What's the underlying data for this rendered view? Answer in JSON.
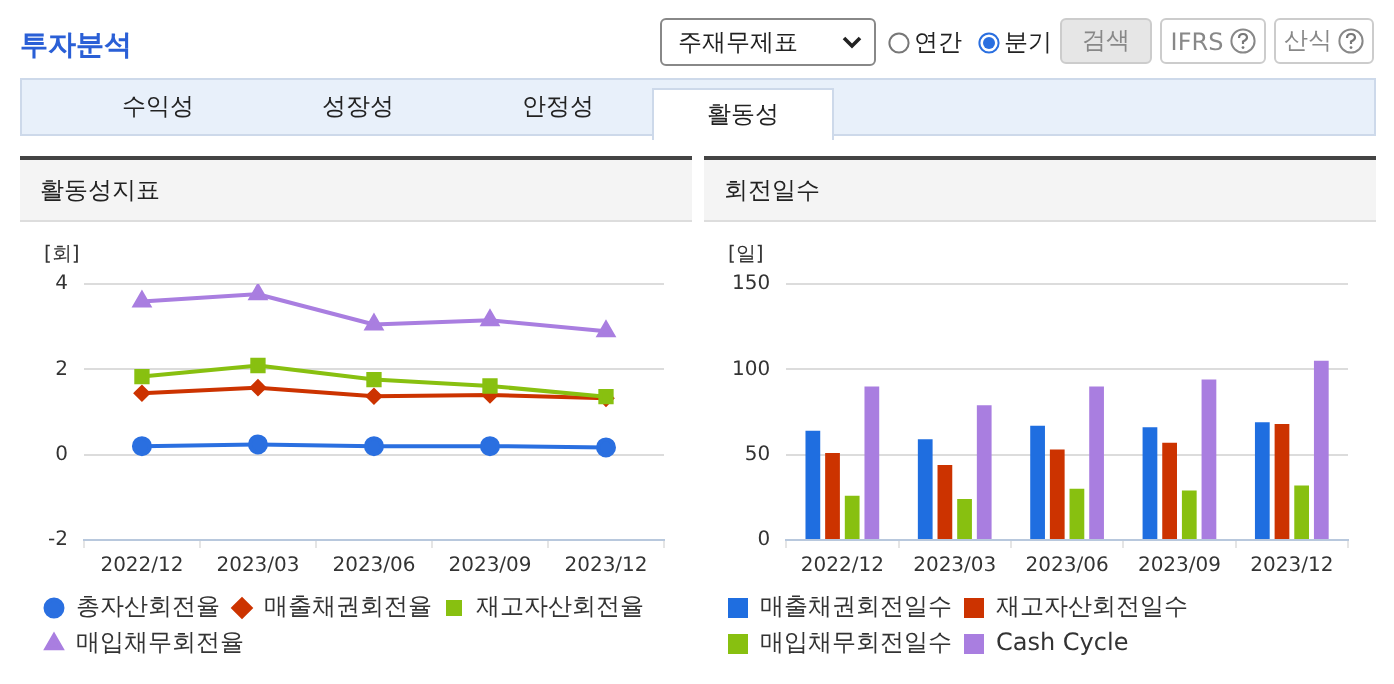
{
  "chart_data": [
    {
      "type": "other",
      "title": "투자분석",
      "annotations": [
        "주재무제표",
        "연간",
        "분기",
        "검색",
        "IFRS",
        "산식",
        "수익성",
        "성장성",
        "안정성",
        "활동성"
      ]
    },
    {
      "type": "line",
      "title": "활동성지표",
      "ylabel": "[회]",
      "categories": [
        "2022/12",
        "2023/03",
        "2023/06",
        "2023/09",
        "2023/12"
      ],
      "ylim": [
        -2,
        4
      ],
      "yticks": [
        -2,
        0,
        2,
        4
      ],
      "grid": "y",
      "legend": "bottom",
      "series": [
        {
          "name": "총자산회전율",
          "color": "#2a6fe0",
          "marker": "circle",
          "values": [
            0.2,
            0.24,
            0.2,
            0.2,
            0.17
          ]
        },
        {
          "name": "매출채권회전율",
          "color": "#cc3300",
          "marker": "diamond",
          "values": [
            1.44,
            1.57,
            1.37,
            1.4,
            1.32
          ]
        },
        {
          "name": "재고자산회전율",
          "color": "#88c010",
          "marker": "square",
          "values": [
            1.83,
            2.09,
            1.76,
            1.61,
            1.36
          ]
        },
        {
          "name": "매입채무회전율",
          "color": "#a97ee0",
          "marker": "triangle",
          "values": [
            3.59,
            3.76,
            3.05,
            3.15,
            2.89
          ]
        }
      ]
    },
    {
      "type": "bar",
      "title": "회전일수",
      "ylabel": "[일]",
      "categories": [
        "2022/12",
        "2023/03",
        "2023/06",
        "2023/09",
        "2023/12"
      ],
      "ylim": [
        0,
        150
      ],
      "yticks": [
        0,
        50,
        100,
        150
      ],
      "grid": "y",
      "legend": "bottom",
      "series": [
        {
          "name": "매출채권회전일수",
          "color": "#1f6ee0",
          "values": [
            64,
            59,
            67,
            66,
            69
          ]
        },
        {
          "name": "재고자산회전일수",
          "color": "#cc3300",
          "values": [
            51,
            44,
            53,
            57,
            68
          ]
        },
        {
          "name": "매입채무회전일수",
          "color": "#88c010",
          "values": [
            26,
            24,
            30,
            29,
            32
          ]
        },
        {
          "name": "Cash Cycle",
          "color": "#a97ee0",
          "values": [
            90,
            79,
            90,
            94,
            105
          ]
        }
      ]
    }
  ]
}
